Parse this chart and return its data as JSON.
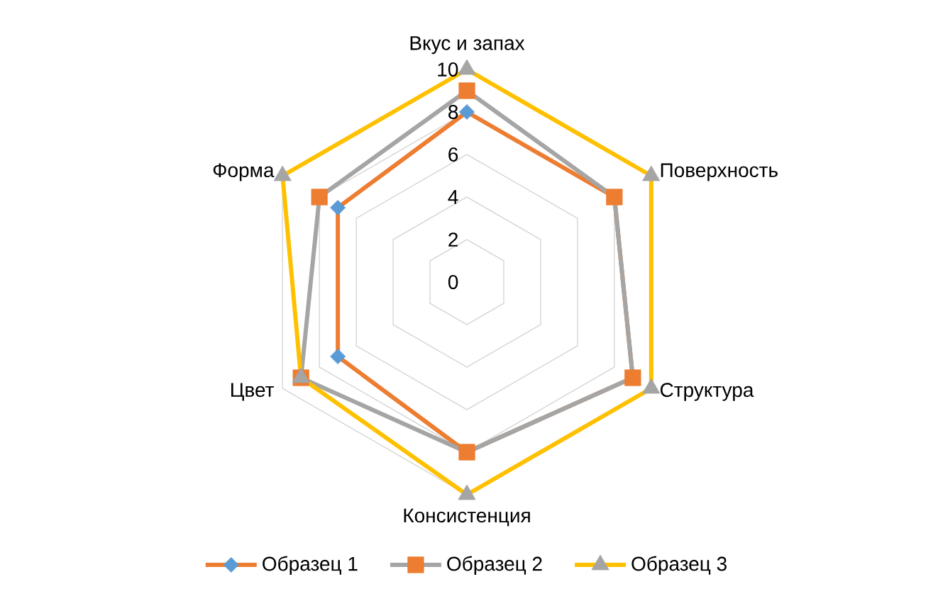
{
  "chart_data": {
    "type": "radar",
    "categories": [
      "Вкус и запах",
      "Поверхность",
      "Структура",
      "Консистенция",
      "Цвет",
      "Форма"
    ],
    "series": [
      {
        "name": "Образец 1",
        "color": "#ED7D31",
        "colors": [
          "#5B9BD5",
          "#5B9BD5",
          "#5B9BD5",
          "#5B9BD5",
          "#5B9BD5",
          "#5B9BD5"
        ],
        "marker": "diamond",
        "values": [
          8,
          8,
          9,
          8,
          7,
          7
        ]
      },
      {
        "name": "Образец 2",
        "color": "#A5A5A5",
        "colors": [
          "#ED7D31",
          "#ED7D31",
          "#ED7D31",
          "#ED7D31",
          "#ED7D31",
          "#ED7D31"
        ],
        "marker": "square",
        "values": [
          9,
          8,
          9,
          8,
          9,
          8
        ]
      },
      {
        "name": "Образец 3",
        "color": "#FFC000",
        "colors": [
          "#A5A5A5",
          "#A5A5A5",
          "#A5A5A5",
          "#A5A5A5",
          "#A5A5A5",
          "#A5A5A5"
        ],
        "marker": "triangle",
        "values": [
          10,
          10,
          10,
          10,
          9,
          10
        ]
      }
    ],
    "ylim": [
      0,
      10
    ],
    "yticks": [
      0,
      2,
      4,
      6,
      8,
      10
    ],
    "grid": true,
    "legend": "bottom",
    "line_style": "solid"
  }
}
